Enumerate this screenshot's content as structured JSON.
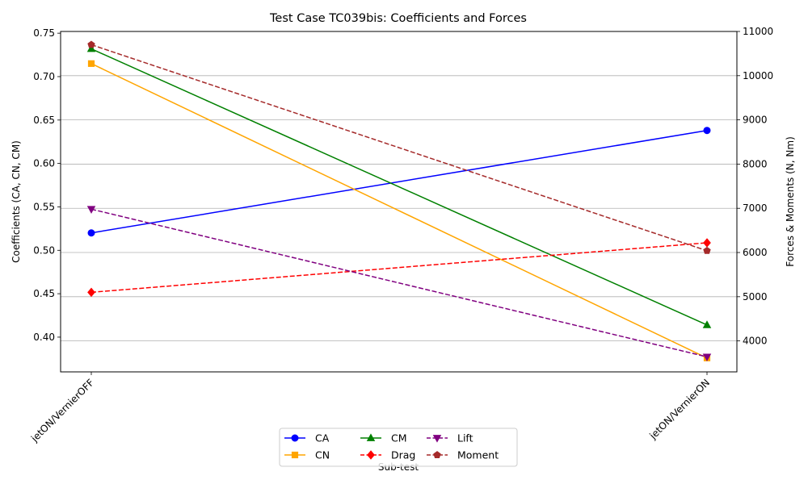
{
  "chart_data": {
    "type": "line",
    "title": "Test Case TC039bis: Coefficients and Forces",
    "xlabel": "Sub-test",
    "ylabel_left": "Coefficients (CA, CN, CM)",
    "ylabel_right": "Forces & Moments (N, Nm)",
    "categories": [
      "jetON/VernierOFF",
      "jetON/VernierON"
    ],
    "left_axis": {
      "ylim": [
        0.36,
        0.752
      ],
      "ticks": [
        0.4,
        0.45,
        0.5,
        0.55,
        0.6,
        0.65,
        0.7,
        0.75
      ],
      "tick_labels": [
        "0.40",
        "0.45",
        "0.50",
        "0.55",
        "0.60",
        "0.65",
        "0.70",
        "0.75"
      ]
    },
    "right_axis": {
      "ylim": [
        3300,
        11000
      ],
      "ticks": [
        4000,
        5000,
        6000,
        7000,
        8000,
        9000,
        10000,
        11000
      ],
      "tick_labels": [
        "4000",
        "5000",
        "6000",
        "7000",
        "8000",
        "9000",
        "10000",
        "11000"
      ],
      "grid": true
    },
    "series": [
      {
        "name": "CA",
        "axis": "left",
        "values": [
          0.52,
          0.638
        ],
        "color": "#0000ff",
        "marker": "circle",
        "dash": "solid"
      },
      {
        "name": "CN",
        "axis": "left",
        "values": [
          0.715,
          0.376
        ],
        "color": "#ffa500",
        "marker": "square",
        "dash": "solid"
      },
      {
        "name": "CM",
        "axis": "left",
        "values": [
          0.732,
          0.414
        ],
        "color": "#008000",
        "marker": "triangle-up",
        "dash": "solid"
      },
      {
        "name": "Drag",
        "axis": "right",
        "values": [
          5100,
          6220
        ],
        "color": "#ff0000",
        "marker": "diamond",
        "dash": "dashed"
      },
      {
        "name": "Lift",
        "axis": "right",
        "values": [
          6980,
          3640
        ],
        "color": "#800080",
        "marker": "triangle-down",
        "dash": "dashed"
      },
      {
        "name": "Moment",
        "axis": "right",
        "values": [
          10700,
          6040
        ],
        "color": "#a52a2a",
        "marker": "pentagon",
        "dash": "dashed"
      }
    ],
    "legend": {
      "placement": "bottom-center",
      "columns": 3
    }
  }
}
